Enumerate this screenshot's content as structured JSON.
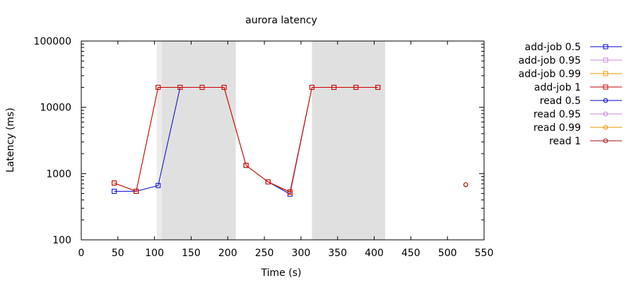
{
  "chart_data": {
    "type": "line",
    "title": "aurora latency",
    "xlabel": "Time (s)",
    "ylabel": "Latency (ms)",
    "xlim": [
      0,
      550
    ],
    "ylim": [
      100,
      100000
    ],
    "yscale": "log",
    "grid": false,
    "legend_position": "right",
    "x_ticks": [
      "0",
      "50",
      "100",
      "150",
      "200",
      "250",
      "300",
      "350",
      "400",
      "450",
      "500",
      "550"
    ],
    "y_ticks": [
      "100",
      "1000",
      "10000",
      "100000"
    ],
    "shaded_regions": [
      {
        "start": 103,
        "end": 110,
        "color": "#ececec"
      },
      {
        "start": 110,
        "end": 211,
        "color": "#e0e0e0"
      },
      {
        "start": 315,
        "end": 415,
        "color": "#e0e0e0"
      }
    ],
    "series": [
      {
        "name": "add-job 0.5",
        "color": "#0000cc",
        "marker": "square",
        "x": [
          45,
          75,
          105,
          135,
          165,
          195,
          225,
          255,
          285,
          315,
          345,
          375,
          405
        ],
        "y": [
          540,
          540,
          660,
          20000,
          20000,
          20000,
          1330,
          750,
          490,
          20000,
          20000,
          20000,
          20000
        ]
      },
      {
        "name": "add-job 0.95",
        "color": "#cc88dd",
        "marker": "square",
        "x": [
          45,
          75,
          105,
          135,
          165,
          195,
          225,
          255,
          285,
          315,
          345,
          375,
          405
        ],
        "y": [
          720,
          540,
          20000,
          20000,
          20000,
          20000,
          1330,
          750,
          520,
          20000,
          20000,
          20000,
          20000
        ]
      },
      {
        "name": "add-job 0.99",
        "color": "#ee9900",
        "marker": "square",
        "x": [
          45,
          75,
          105,
          135,
          165,
          195,
          225,
          255,
          285,
          315,
          345,
          375,
          405
        ],
        "y": [
          720,
          540,
          20000,
          20000,
          20000,
          20000,
          1330,
          750,
          520,
          20000,
          20000,
          20000,
          20000
        ]
      },
      {
        "name": "add-job 1",
        "color": "#cc0000",
        "marker": "square",
        "x": [
          45,
          75,
          105,
          135,
          165,
          195,
          225,
          255,
          285,
          315,
          345,
          375,
          405
        ],
        "y": [
          720,
          540,
          20000,
          20000,
          20000,
          20000,
          1330,
          750,
          530,
          20000,
          20000,
          20000,
          20000
        ]
      },
      {
        "name": "read 0.5",
        "color": "#0000cc",
        "marker": "circle",
        "x": [
          525
        ],
        "y": [
          680
        ]
      },
      {
        "name": "read 0.95",
        "color": "#cc88dd",
        "marker": "circle",
        "x": [
          525
        ],
        "y": [
          680
        ]
      },
      {
        "name": "read 0.99",
        "color": "#ee9900",
        "marker": "circle",
        "x": [
          525
        ],
        "y": [
          680
        ]
      },
      {
        "name": "read 1",
        "color": "#aa1111",
        "marker": "circle",
        "x": [
          525
        ],
        "y": [
          680
        ]
      }
    ]
  }
}
